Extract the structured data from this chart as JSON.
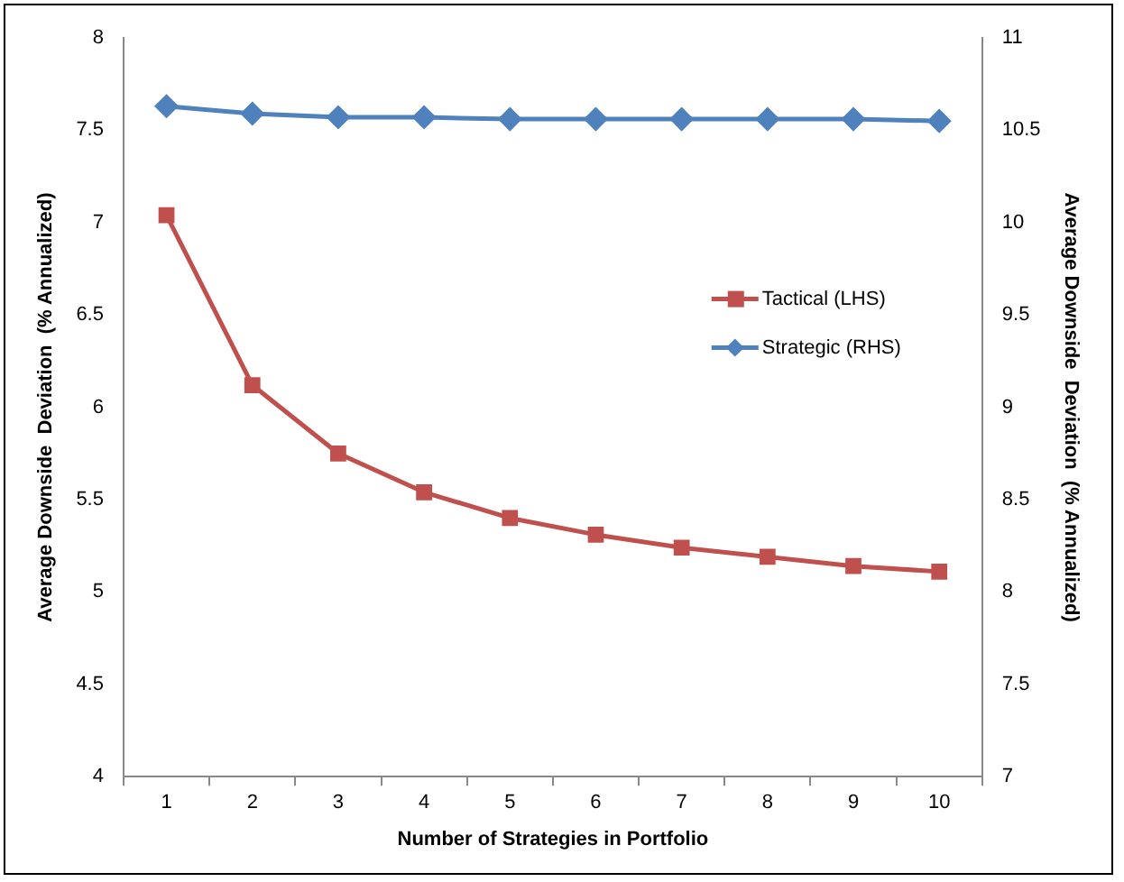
{
  "chart_data": {
    "type": "line",
    "xlabel": "Number of Strategies in Portfolio",
    "ylabel": "Average Downside  Deviation  (% Annualized)",
    "y2label": "Average Downside  Deviation  (% Annualized)",
    "categories": [
      "1",
      "2",
      "3",
      "4",
      "5",
      "6",
      "7",
      "8",
      "9",
      "10"
    ],
    "series": [
      {
        "name": "Tactical (LHS)",
        "color": "#c0504d",
        "marker": "square",
        "values": [
          7.04,
          6.12,
          5.75,
          5.54,
          5.4,
          5.31,
          5.24,
          5.19,
          5.14,
          5.11
        ]
      },
      {
        "name": "Strategic (RHS)",
        "color": "#4f81bd",
        "marker": "diamond",
        "axis": "y2",
        "values": [
          10.63,
          10.59,
          10.57,
          10.57,
          10.56,
          10.56,
          10.56,
          10.56,
          10.56,
          10.55
        ]
      }
    ],
    "ylim": [
      4,
      8
    ],
    "yticks": [
      4,
      4.5,
      5,
      5.5,
      6,
      6.5,
      7,
      7.5,
      8
    ],
    "y2lim": [
      7,
      11
    ],
    "y2ticks": [
      7,
      7.5,
      8,
      8.5,
      9,
      9.5,
      10,
      10.5,
      11
    ],
    "grid": false,
    "legend": "right",
    "line_style": "solid"
  }
}
